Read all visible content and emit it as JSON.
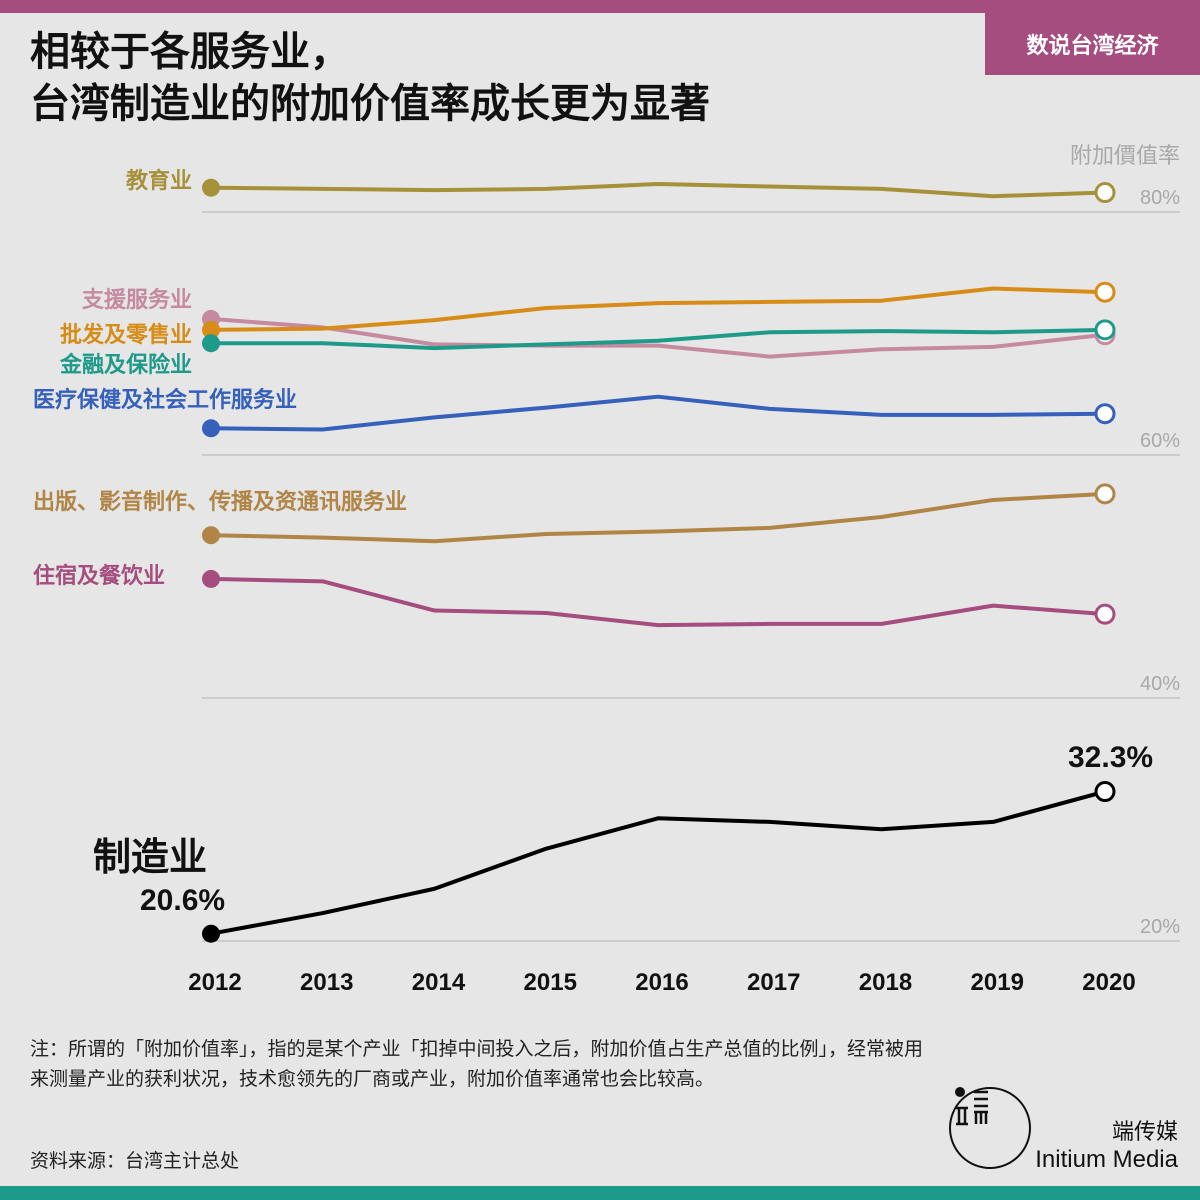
{
  "header": {
    "series_tag": "数说台湾经济",
    "title_line1": "相较于各服务业，",
    "title_line2": "台湾制造业的附加价值率成长更为显著"
  },
  "chart_data": {
    "type": "line",
    "ylabel": "附加價值率",
    "ylim": [
      18,
      82
    ],
    "y_ticks": [
      {
        "value": 80,
        "label": "80%"
      },
      {
        "value": 60,
        "label": "60%"
      },
      {
        "value": 40,
        "label": "40%"
      },
      {
        "value": 20,
        "label": "20%"
      }
    ],
    "x": [
      "2012",
      "2013",
      "2014",
      "2015",
      "2016",
      "2017",
      "2018",
      "2019",
      "2020"
    ],
    "grid": "horizontal",
    "legend": "inline-left",
    "series": [
      {
        "name": "教育业",
        "color": "#a6913a",
        "values": [
          82.0,
          81.9,
          81.8,
          81.9,
          82.3,
          82.1,
          81.9,
          81.3,
          81.6
        ]
      },
      {
        "name": "支援服务业",
        "color": "#c58aa0",
        "values": [
          71.2,
          70.5,
          69.1,
          69.0,
          69.0,
          68.1,
          68.7,
          68.9,
          69.9
        ]
      },
      {
        "name": "批发及零售业",
        "color": "#d68c16",
        "values": [
          70.3,
          70.4,
          71.1,
          72.1,
          72.5,
          72.6,
          72.7,
          73.7,
          73.4
        ]
      },
      {
        "name": "金融及保险业",
        "color": "#1e9a8a",
        "values": [
          69.2,
          69.2,
          68.8,
          69.1,
          69.4,
          70.1,
          70.2,
          70.1,
          70.3
        ]
      },
      {
        "name": "医疗保健及社会工作服务业",
        "color": "#3560bb",
        "values": [
          62.2,
          62.1,
          63.1,
          63.9,
          64.8,
          63.8,
          63.3,
          63.3,
          63.4
        ]
      },
      {
        "name": "出版、影音制作、传播及资通讯服务业",
        "color": "#b08546",
        "values": [
          53.4,
          53.2,
          52.9,
          53.5,
          53.7,
          54.0,
          54.9,
          56.3,
          56.8
        ]
      },
      {
        "name": "住宿及餐饮业",
        "color": "#a54d7e",
        "values": [
          49.8,
          49.6,
          47.2,
          47.0,
          46.0,
          46.1,
          46.1,
          47.6,
          46.9
        ]
      },
      {
        "name": "制造业",
        "color": "#000000",
        "values": [
          20.6,
          22.3,
          24.3,
          27.6,
          30.1,
          29.8,
          29.2,
          29.8,
          32.3
        ]
      }
    ],
    "annotations": {
      "start_value": "20.6%",
      "end_value": "32.3%"
    }
  },
  "footer": {
    "note": "注：所谓的「附加价值率」，指的是某个产业「扣掉中间投入之后，附加价值占生产总值的比例」，经常被用来测量产业的获利状况，技术愈领先的厂商或产业，附加价值率通常也会比较高。",
    "source": "资料来源：台湾主计总处",
    "brand_cn": "端传媒",
    "brand_en": "Initium Media"
  }
}
